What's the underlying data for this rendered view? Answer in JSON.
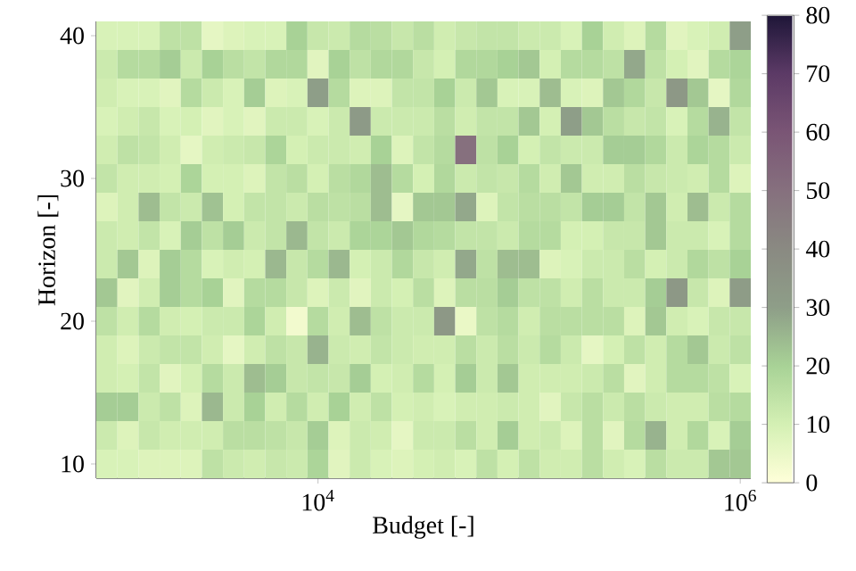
{
  "chart_data": {
    "type": "heatmap",
    "xlabel": "Budget [-]",
    "ylabel": "Horizon [-]",
    "log": "x",
    "x": [
      1000,
      1259,
      1585,
      1995,
      2512,
      3162,
      3981,
      5012,
      6310,
      7943,
      10000,
      12589,
      15849,
      19953,
      25119,
      31623,
      39811,
      50119,
      63096,
      79433,
      100000,
      125893,
      158489,
      199526,
      251189,
      316228,
      398107,
      501187,
      630957,
      794328,
      1000000
    ],
    "y": [
      40,
      38,
      36,
      34,
      32,
      30,
      28,
      26,
      24,
      22,
      20,
      18,
      16,
      14,
      12,
      10
    ],
    "xlim": [
      891,
      1122018
    ],
    "xticks": [
      {
        "value": 10000,
        "label": "10$^{4}$"
      },
      {
        "value": 1000000,
        "label": "10$^{6}$"
      }
    ],
    "ylim": [
      9,
      41
    ],
    "yticks": [
      10,
      20,
      30,
      40
    ],
    "clim": [
      0,
      80
    ],
    "cticks": [
      0,
      10,
      20,
      30,
      40,
      50,
      60,
      70,
      80
    ],
    "cells": [
      [
        9,
        9,
        9,
        15,
        15,
        6,
        8,
        9,
        9,
        20,
        13,
        12,
        17,
        16,
        13,
        16,
        11,
        13,
        14,
        14,
        12,
        12,
        9,
        20,
        11,
        8,
        17,
        7,
        9,
        11,
        30
      ],
      [
        12,
        17,
        17,
        21,
        12,
        20,
        16,
        14,
        18,
        18,
        7,
        20,
        15,
        18,
        18,
        13,
        10,
        18,
        18,
        20,
        22,
        10,
        17,
        17,
        15,
        28,
        15,
        10,
        7,
        17,
        19
      ],
      [
        11,
        9,
        9,
        7,
        17,
        12,
        9,
        21,
        8,
        9,
        30,
        17,
        8,
        8,
        14,
        14,
        20,
        12,
        22,
        9,
        9,
        24,
        9,
        8,
        22,
        18,
        13,
        33,
        22,
        6,
        18
      ],
      [
        9,
        11,
        13,
        9,
        10,
        7,
        9,
        7,
        12,
        12,
        9,
        12,
        32,
        12,
        12,
        12,
        16,
        11,
        14,
        14,
        22,
        10,
        30,
        22,
        16,
        13,
        14,
        9,
        17,
        26,
        14
      ],
      [
        11,
        15,
        14,
        11,
        6,
        11,
        12,
        13,
        19,
        10,
        12,
        12,
        11,
        20,
        8,
        14,
        17,
        50,
        15,
        20,
        10,
        14,
        12,
        12,
        21,
        21,
        18,
        12,
        19,
        17,
        12
      ],
      [
        14,
        11,
        11,
        10,
        19,
        10,
        10,
        8,
        14,
        16,
        10,
        16,
        18,
        24,
        17,
        10,
        18,
        12,
        14,
        13,
        17,
        11,
        22,
        11,
        11,
        16,
        13,
        12,
        11,
        17,
        8
      ],
      [
        8,
        11,
        24,
        14,
        12,
        23,
        10,
        14,
        14,
        12,
        16,
        15,
        16,
        24,
        6,
        22,
        22,
        28,
        8,
        14,
        16,
        16,
        14,
        21,
        21,
        14,
        22,
        11,
        24,
        12,
        17
      ],
      [
        12,
        11,
        14,
        9,
        21,
        15,
        21,
        12,
        14,
        25,
        14,
        12,
        19,
        19,
        22,
        18,
        17,
        14,
        14,
        12,
        17,
        17,
        10,
        10,
        13,
        13,
        22,
        12,
        12,
        9,
        17
      ],
      [
        12,
        22,
        8,
        21,
        17,
        9,
        11,
        10,
        25,
        13,
        17,
        25,
        10,
        12,
        18,
        13,
        11,
        28,
        15,
        24,
        24,
        8,
        9,
        12,
        12,
        16,
        10,
        12,
        18,
        15,
        20
      ],
      [
        22,
        7,
        11,
        21,
        17,
        20,
        7,
        17,
        17,
        13,
        8,
        12,
        7,
        12,
        10,
        16,
        8,
        16,
        16,
        21,
        15,
        15,
        11,
        16,
        12,
        12,
        21,
        33,
        13,
        8,
        31
      ],
      [
        15,
        11,
        17,
        11,
        10,
        12,
        12,
        19,
        11,
        3,
        17,
        11,
        24,
        15,
        12,
        12,
        33,
        5,
        15,
        17,
        11,
        16,
        16,
        16,
        16,
        8,
        22,
        11,
        9,
        13,
        13
      ],
      [
        11,
        8,
        12,
        14,
        14,
        11,
        6,
        11,
        15,
        13,
        26,
        12,
        11,
        14,
        12,
        11,
        11,
        16,
        12,
        16,
        12,
        17,
        12,
        6,
        10,
        15,
        11,
        17,
        22,
        12,
        15
      ],
      [
        11,
        10,
        14,
        7,
        10,
        17,
        12,
        24,
        21,
        13,
        14,
        13,
        21,
        10,
        11,
        17,
        10,
        21,
        12,
        22,
        11,
        11,
        11,
        12,
        16,
        7,
        11,
        17,
        17,
        15,
        9
      ],
      [
        21,
        21,
        12,
        15,
        8,
        25,
        12,
        20,
        11,
        17,
        11,
        20,
        11,
        15,
        10,
        11,
        9,
        11,
        11,
        12,
        11,
        7,
        13,
        16,
        12,
        16,
        12,
        11,
        11,
        16,
        17
      ],
      [
        12,
        8,
        13,
        11,
        11,
        11,
        16,
        16,
        15,
        13,
        21,
        8,
        12,
        11,
        6,
        12,
        12,
        16,
        11,
        21,
        11,
        12,
        8,
        16,
        7,
        17,
        26,
        11,
        18,
        9,
        21
      ],
      [
        9,
        9,
        8,
        8,
        8,
        15,
        12,
        11,
        13,
        12,
        19,
        7,
        12,
        9,
        8,
        10,
        11,
        9,
        15,
        10,
        15,
        11,
        11,
        16,
        11,
        9,
        16,
        12,
        12,
        22,
        22
      ]
    ]
  }
}
